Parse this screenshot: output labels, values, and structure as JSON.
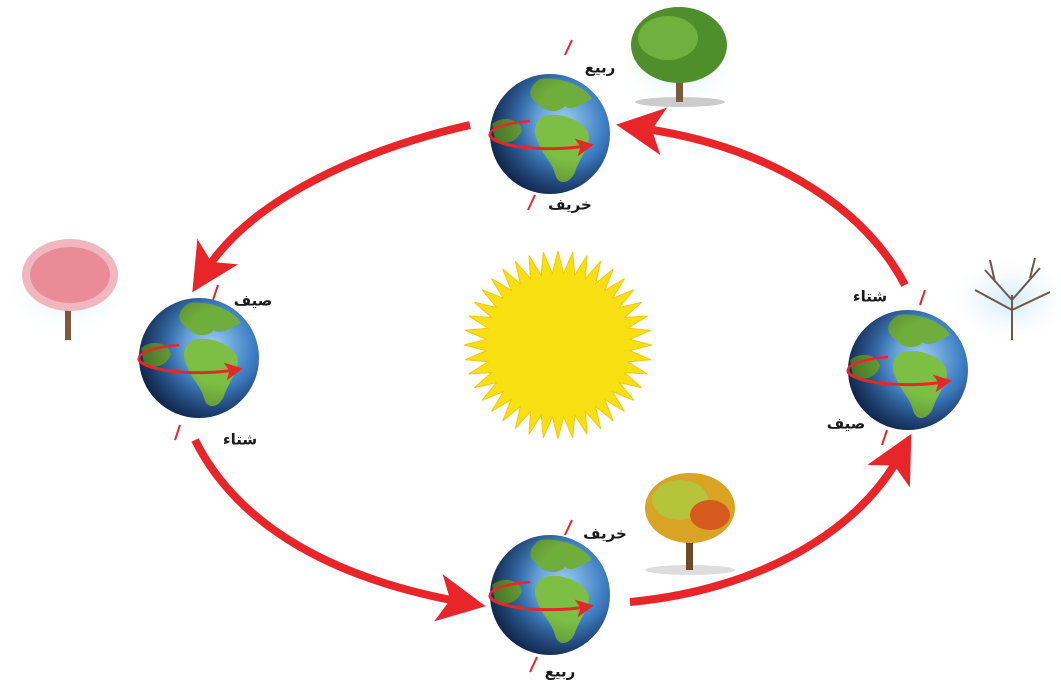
{
  "positions": [
    {
      "top_label": "ربيع",
      "bottom_label": "خريف"
    },
    {
      "top_label": "صيف",
      "bottom_label": "شتاء"
    },
    {
      "top_label": "شتاء",
      "bottom_label": "صيف"
    },
    {
      "top_label": "خريف",
      "bottom_label": "ربيع"
    }
  ]
}
